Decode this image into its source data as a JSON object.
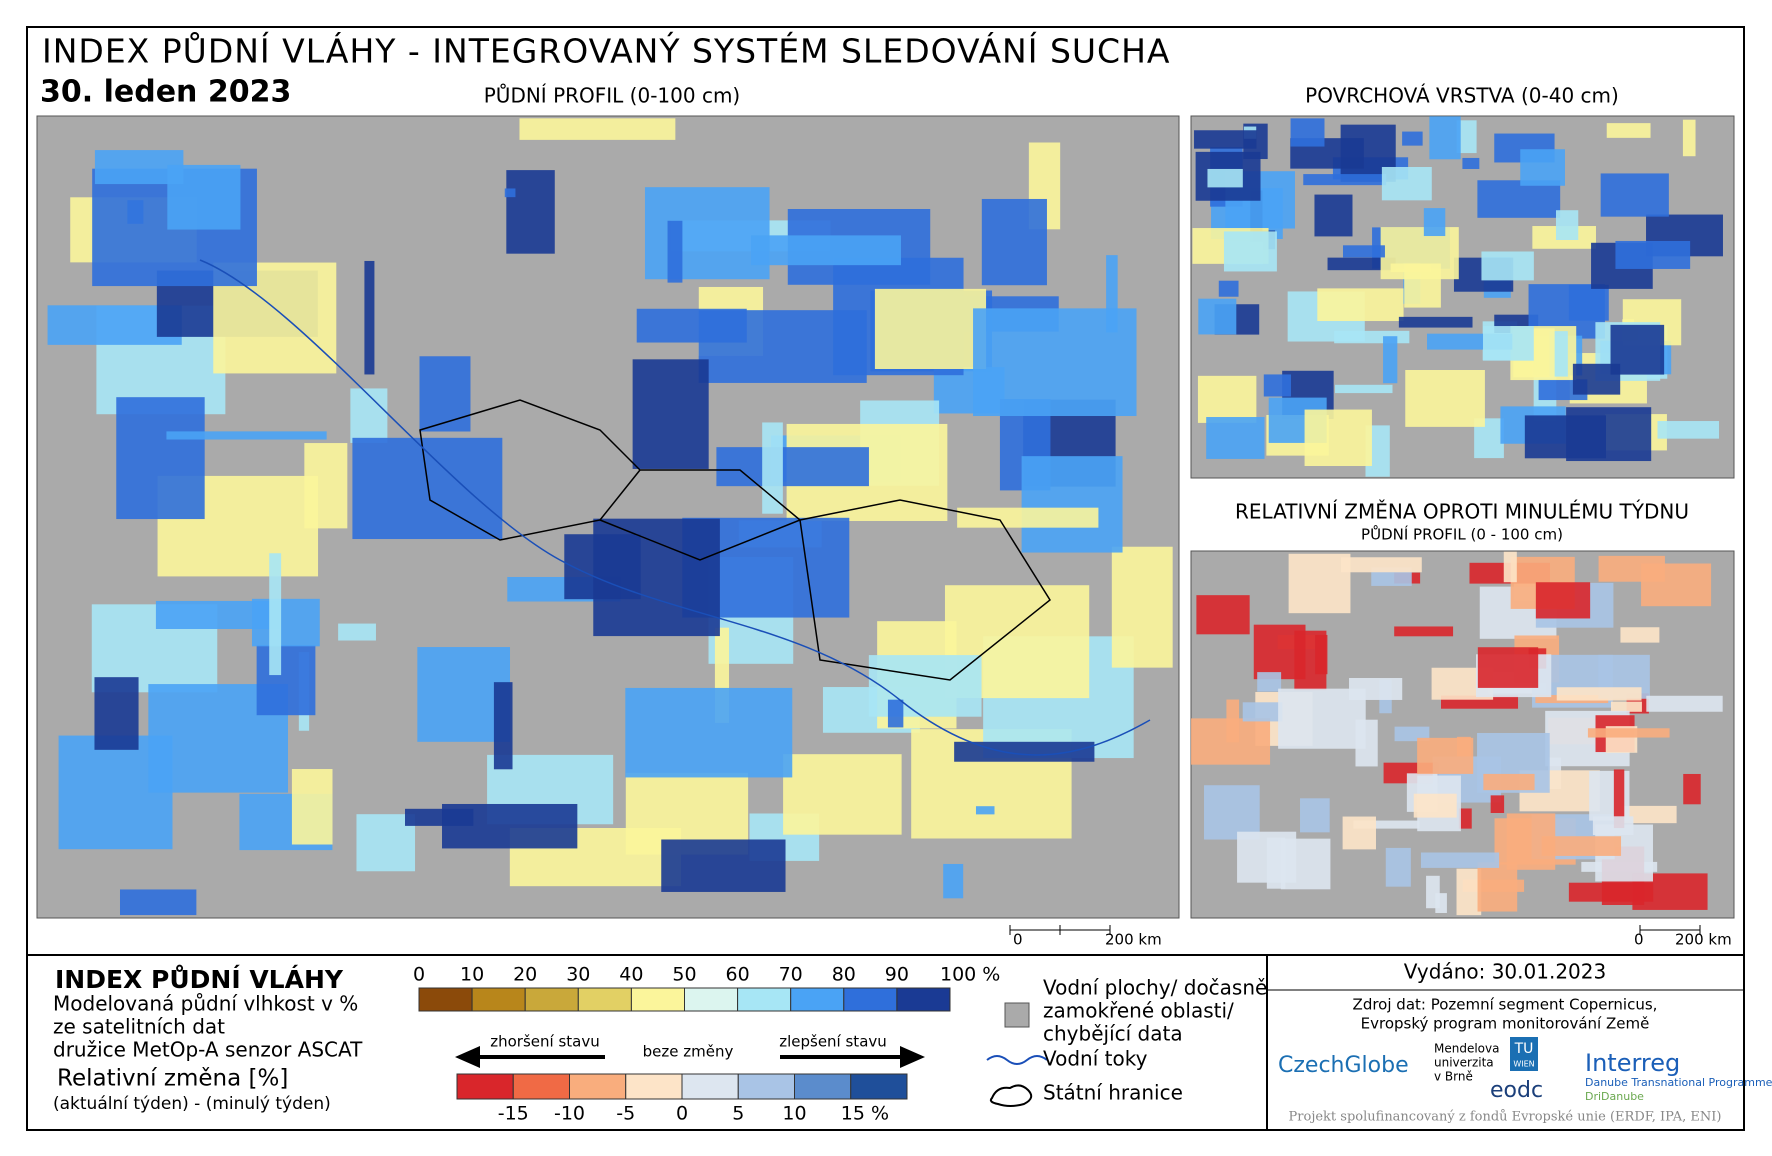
{
  "header": {
    "title": "INDEX PŮDNÍ VLÁHY - INTEGROVANÝ SYSTÉM SLEDOVÁNÍ SUCHA",
    "date": "30. leden 2023"
  },
  "maps": {
    "main_title": "PŮDNÍ PROFIL (0-100 cm)",
    "surface_title": "POVRCHOVÁ VRSTVA (0-40 cm)",
    "change_title": "RELATIVNÍ ZMĚNA OPROTI MINULÉMU TÝDNU",
    "change_subtitle": "PŮDNÍ PROFIL (0 - 100 cm)",
    "scale_zero": "0",
    "scale_length": "200 km"
  },
  "legend": {
    "title": "INDEX PŮDNÍ VLÁHY",
    "description": [
      "Modelovaná půdní vlhkost v %",
      "ze satelitních dat",
      "družice MetOp-A senzor ASCAT"
    ],
    "moisture_ticks": [
      0,
      10,
      20,
      30,
      40,
      50,
      60,
      70,
      80,
      90,
      {
        "value": 100,
        "label": "100 %"
      }
    ],
    "moisture_colors": [
      "#8b4a0a",
      "#b8861b",
      "#c9a83a",
      "#e2d064",
      "#fbf59b",
      "#dcf5ef",
      "#a7e6f5",
      "#4aa3f5",
      "#2f6fdb",
      "#1a3a94"
    ],
    "change_title": "Relativní změna [%]",
    "change_note": "(aktuální týden) - (minulý týden)",
    "worse": "zhoršení stavu",
    "same": "beze změny",
    "better": "zlepšení stavu",
    "change_ticks": [
      -15,
      -10,
      -5,
      0,
      5,
      10,
      {
        "value": 15,
        "label": "15 %"
      }
    ],
    "change_colors": [
      "#d9262b",
      "#f06a45",
      "#f9ad7d",
      "#fde4c8",
      "#dde6f0",
      "#a9c4e6",
      "#5b8ccc",
      "#1f4f9a"
    ],
    "water": [
      "Vodní plochy/ dočasně",
      "zamokřené oblasti/",
      "chybějící data"
    ],
    "rivers": "Vodní toky",
    "borders": "Státní hranice"
  },
  "footer": {
    "issued": "Vydáno: 30.01.2023",
    "source": [
      "Zdroj dat: Pozemní segment Copernicus,",
      "Evropský program monitorování Země"
    ],
    "logos": [
      "CzechGlobe",
      "Mendelova",
      "univerzita",
      "v Brně",
      "TU",
      "WIEN",
      "eodc",
      "Interreg",
      "Danube Transnational Programme",
      "DriDanube"
    ],
    "project": "Projekt spolufinancovaný z fondů Evropské unie (ERDF, IPA, ENI)"
  }
}
